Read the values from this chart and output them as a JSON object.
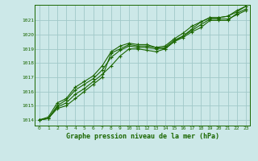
{
  "title": "Graphe pression niveau de la mer (hPa)",
  "background_color": "#cce8e8",
  "grid_color": "#a0c8c8",
  "line_color": "#1a6600",
  "xlim": [
    -0.5,
    23.5
  ],
  "ylim": [
    1013.6,
    1022.1
  ],
  "yticks": [
    1014,
    1015,
    1016,
    1017,
    1018,
    1019,
    1020,
    1021
  ],
  "xticks": [
    0,
    1,
    2,
    3,
    4,
    5,
    6,
    7,
    8,
    9,
    10,
    11,
    12,
    13,
    14,
    15,
    16,
    17,
    18,
    19,
    20,
    21,
    22,
    23
  ],
  "series": [
    [
      1014.0,
      1014.1,
      1014.8,
      1015.0,
      1015.5,
      1016.0,
      1016.5,
      1017.0,
      1018.7,
      1019.0,
      1019.3,
      1019.2,
      1019.2,
      1019.1,
      1019.0,
      1019.5,
      1019.8,
      1020.2,
      1020.5,
      1021.0,
      1021.0,
      1021.0,
      1021.5,
      1021.8
    ],
    [
      1014.0,
      1014.1,
      1014.9,
      1015.2,
      1015.8,
      1016.2,
      1016.7,
      1017.2,
      1017.8,
      1018.5,
      1019.0,
      1019.0,
      1018.9,
      1018.8,
      1019.0,
      1019.5,
      1019.9,
      1020.4,
      1020.9,
      1021.2,
      1021.2,
      1021.3,
      1021.6,
      1022.0
    ],
    [
      1014.0,
      1014.2,
      1015.2,
      1015.5,
      1016.3,
      1016.7,
      1017.1,
      1017.8,
      1018.8,
      1019.2,
      1019.4,
      1019.3,
      1019.3,
      1019.1,
      1019.2,
      1019.7,
      1020.1,
      1020.6,
      1020.9,
      1021.2,
      1021.2,
      1021.3,
      1021.7,
      1022.0
    ],
    [
      1014.0,
      1014.1,
      1015.0,
      1015.4,
      1016.1,
      1016.5,
      1016.9,
      1017.5,
      1018.4,
      1018.9,
      1019.2,
      1019.1,
      1019.1,
      1019.0,
      1019.1,
      1019.6,
      1019.9,
      1020.3,
      1020.7,
      1021.1,
      1021.1,
      1021.1,
      1021.4,
      1021.7
    ]
  ]
}
